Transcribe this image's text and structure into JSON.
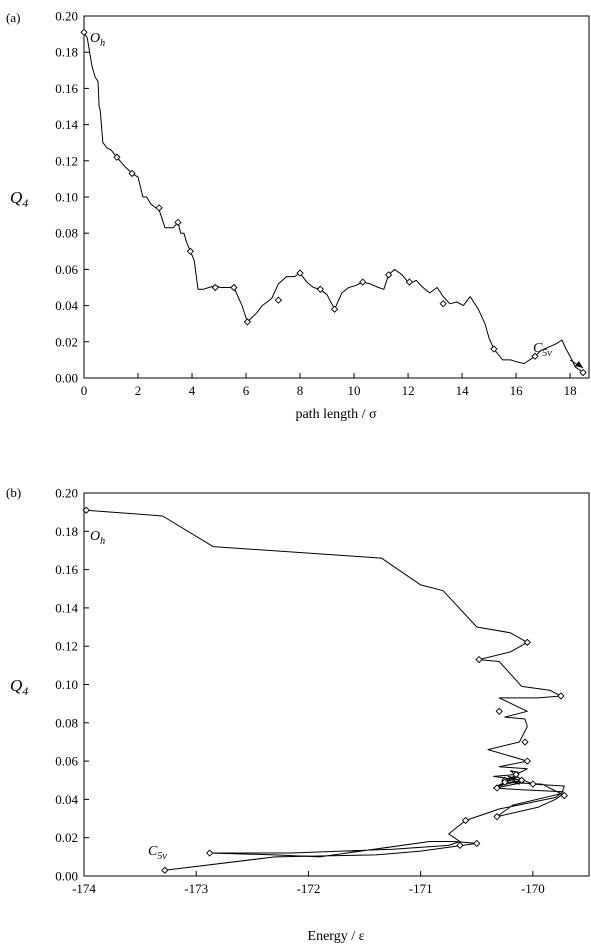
{
  "chart_data": [
    {
      "type": "line",
      "panel_label": "(a)",
      "xlabel": "path length / σ",
      "ylabel": "Q",
      "ylabel_sub": "4",
      "xlim": [
        0,
        18.7
      ],
      "ylim": [
        0,
        0.2
      ],
      "xticks": [
        "0",
        "2",
        "4",
        "6",
        "8",
        "10",
        "12",
        "14",
        "16",
        "18"
      ],
      "yticks": [
        "0.00",
        "0.02",
        "0.04",
        "0.06",
        "0.08",
        "0.10",
        "0.12",
        "0.14",
        "0.16",
        "0.18",
        "0.20"
      ],
      "annotations": [
        {
          "text": "O",
          "sub": "h"
        },
        {
          "text": "C",
          "sub": "5v"
        }
      ],
      "series": [
        {
          "x": [
            0.0,
            0.12,
            0.3,
            0.42,
            0.52,
            0.56,
            0.6,
            0.7,
            0.86,
            1.0,
            1.22,
            1.5,
            1.78,
            2.0,
            2.18,
            2.32,
            2.48,
            2.66,
            2.78,
            3.0,
            3.16,
            3.3,
            3.48,
            3.58,
            3.7,
            3.8,
            3.94,
            4.08,
            4.22,
            4.42,
            4.62,
            4.86,
            5.06,
            5.3,
            5.55,
            5.85,
            6.05,
            6.4,
            6.6,
            6.78,
            6.95,
            7.2,
            7.5,
            7.8,
            8.0,
            8.25,
            8.5,
            8.75,
            9.0,
            9.28,
            9.55,
            9.8,
            10.05,
            10.32,
            10.6,
            10.9,
            11.1,
            11.28,
            11.5,
            11.78,
            12.05,
            12.3,
            12.55,
            12.8,
            13.08,
            13.3,
            13.55,
            13.8,
            14.05,
            14.3,
            14.6,
            14.85,
            15.0,
            15.18,
            15.5,
            15.8,
            16.0,
            16.3,
            16.7,
            16.9,
            17.05,
            17.2,
            17.5,
            17.7,
            17.85,
            18.0,
            18.2,
            18.48
          ],
          "y": [
            0.191,
            0.188,
            0.172,
            0.166,
            0.164,
            0.15,
            0.148,
            0.13,
            0.127,
            0.126,
            0.122,
            0.117,
            0.113,
            0.111,
            0.1,
            0.1,
            0.096,
            0.094,
            0.093,
            0.083,
            0.083,
            0.083,
            0.086,
            0.08,
            0.08,
            0.075,
            0.07,
            0.065,
            0.049,
            0.049,
            0.05,
            0.051,
            0.05,
            0.05,
            0.05,
            0.04,
            0.031,
            0.036,
            0.04,
            0.042,
            0.044,
            0.052,
            0.056,
            0.056,
            0.058,
            0.053,
            0.05,
            0.049,
            0.046,
            0.038,
            0.047,
            0.05,
            0.051,
            0.053,
            0.052,
            0.05,
            0.049,
            0.057,
            0.06,
            0.057,
            0.052,
            0.054,
            0.05,
            0.047,
            0.05,
            0.045,
            0.041,
            0.042,
            0.04,
            0.045,
            0.038,
            0.03,
            0.022,
            0.016,
            0.01,
            0.01,
            0.009,
            0.008,
            0.012,
            0.015,
            0.016,
            0.017,
            0.019,
            0.021,
            0.016,
            0.012,
            0.006,
            0.003
          ]
        }
      ],
      "markers": [
        {
          "x": 0.0,
          "y": 0.191
        },
        {
          "x": 1.22,
          "y": 0.122
        },
        {
          "x": 1.78,
          "y": 0.113
        },
        {
          "x": 2.78,
          "y": 0.094
        },
        {
          "x": 3.48,
          "y": 0.086
        },
        {
          "x": 3.94,
          "y": 0.07
        },
        {
          "x": 4.86,
          "y": 0.05
        },
        {
          "x": 5.55,
          "y": 0.05
        },
        {
          "x": 6.05,
          "y": 0.031
        },
        {
          "x": 7.2,
          "y": 0.043
        },
        {
          "x": 8.0,
          "y": 0.058
        },
        {
          "x": 8.75,
          "y": 0.049
        },
        {
          "x": 9.28,
          "y": 0.038
        },
        {
          "x": 10.32,
          "y": 0.053
        },
        {
          "x": 11.28,
          "y": 0.057
        },
        {
          "x": 12.05,
          "y": 0.053
        },
        {
          "x": 13.3,
          "y": 0.041
        },
        {
          "x": 15.18,
          "y": 0.016
        },
        {
          "x": 16.7,
          "y": 0.012
        },
        {
          "x": 18.48,
          "y": 0.003
        }
      ]
    },
    {
      "type": "line",
      "panel_label": "(b)",
      "xlabel": "Energy / ε",
      "ylabel": "Q",
      "ylabel_sub": "4",
      "xlim": [
        -174,
        -169.5
      ],
      "ylim": [
        0,
        0.2
      ],
      "xticks": [
        "-174",
        "-173",
        "-172",
        "-171",
        "-170"
      ],
      "yticks": [
        "0.00",
        "0.02",
        "0.04",
        "0.06",
        "0.08",
        "0.10",
        "0.12",
        "0.14",
        "0.16",
        "0.18",
        "0.20"
      ],
      "annotations": [
        {
          "text": "O",
          "sub": "h"
        },
        {
          "text": "C",
          "sub": "5v"
        }
      ],
      "series": [
        {
          "x": [
            -173.98,
            -173.3,
            -172.85,
            -171.35,
            -171.0,
            -170.8,
            -170.5,
            -170.2,
            -170.05,
            -170.2,
            -170.48,
            -170.3,
            -170.1,
            -169.85,
            -169.75,
            -169.95,
            -170.3,
            -170.05,
            -170.25,
            -170.07,
            -170.05,
            -170.12,
            -170.4,
            -170.05,
            -170.3,
            -170.05,
            -170.15,
            -170.35,
            -170.1,
            -170.18,
            -170.12,
            -170.22,
            -170.15,
            -170.25,
            -170.08,
            -170.32,
            -170.12,
            -170.2,
            -170.1,
            -170.3,
            -170.15,
            -170.08,
            -170.0,
            -169.72,
            -169.75,
            -169.8,
            -169.95,
            -170.32,
            -170.18,
            -169.75,
            -169.92,
            -170.25,
            -170.35,
            -170.1,
            -169.73,
            -169.8,
            -170.05,
            -170.3,
            -170.6,
            -170.75,
            -170.65,
            -170.75,
            -171.25,
            -172.15,
            -172.88,
            -172.3,
            -171.9,
            -170.92,
            -170.7,
            -170.5,
            -170.75,
            -171.0,
            -171.4,
            -172.3,
            -173.28
          ],
          "y": [
            0.191,
            0.188,
            0.172,
            0.166,
            0.152,
            0.149,
            0.13,
            0.127,
            0.122,
            0.117,
            0.113,
            0.112,
            0.099,
            0.097,
            0.094,
            0.093,
            0.093,
            0.086,
            0.083,
            0.082,
            0.078,
            0.07,
            0.066,
            0.06,
            0.057,
            0.056,
            0.053,
            0.052,
            0.05,
            0.049,
            0.048,
            0.052,
            0.051,
            0.05,
            0.049,
            0.046,
            0.054,
            0.055,
            0.05,
            0.047,
            0.052,
            0.05,
            0.048,
            0.047,
            0.042,
            0.04,
            0.036,
            0.031,
            0.037,
            0.043,
            0.048,
            0.049,
            0.046,
            0.045,
            0.044,
            0.041,
            0.038,
            0.035,
            0.029,
            0.022,
            0.018,
            0.016,
            0.014,
            0.012,
            0.012,
            0.011,
            0.01,
            0.018,
            0.018,
            0.017,
            0.015,
            0.013,
            0.011,
            0.01,
            0.003
          ]
        }
      ],
      "markers": [
        {
          "x": -173.98,
          "y": 0.191
        },
        {
          "x": -170.05,
          "y": 0.122
        },
        {
          "x": -170.48,
          "y": 0.113
        },
        {
          "x": -169.75,
          "y": 0.094
        },
        {
          "x": -170.3,
          "y": 0.086
        },
        {
          "x": -170.07,
          "y": 0.07
        },
        {
          "x": -170.05,
          "y": 0.06
        },
        {
          "x": -170.15,
          "y": 0.053
        },
        {
          "x": -170.25,
          "y": 0.05
        },
        {
          "x": -170.32,
          "y": 0.046
        },
        {
          "x": -170.1,
          "y": 0.05
        },
        {
          "x": -170.0,
          "y": 0.048
        },
        {
          "x": -169.72,
          "y": 0.042
        },
        {
          "x": -170.32,
          "y": 0.031
        },
        {
          "x": -170.25,
          "y": 0.049
        },
        {
          "x": -170.6,
          "y": 0.029
        },
        {
          "x": -170.65,
          "y": 0.016
        },
        {
          "x": -172.88,
          "y": 0.012
        },
        {
          "x": -170.5,
          "y": 0.017
        },
        {
          "x": -173.28,
          "y": 0.003
        }
      ]
    }
  ]
}
